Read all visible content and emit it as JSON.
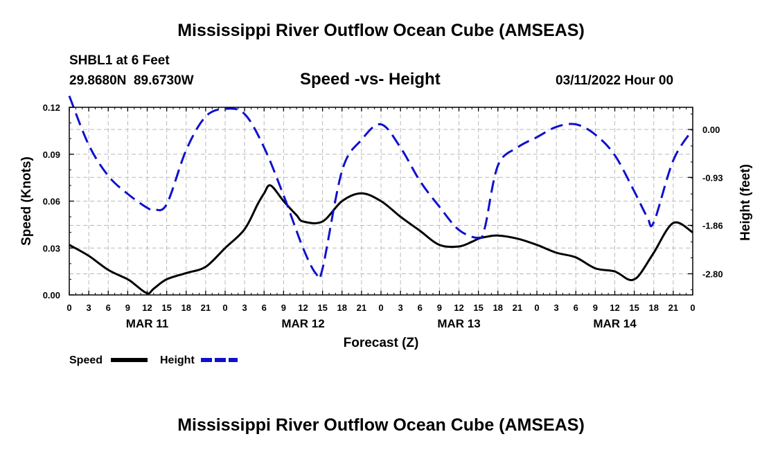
{
  "header": {
    "title": "Mississippi River Outflow Ocean Cube (AMSEAS)",
    "station": "SHBL1 at 6 Feet",
    "location": "29.8680N  89.6730W",
    "subtitle": "Speed -vs- Height",
    "datetime": "03/11/2022 Hour 00"
  },
  "footer": {
    "title": "Mississippi River Outflow Ocean Cube (AMSEAS)"
  },
  "chart_data": {
    "type": "line",
    "title": "Speed -vs- Height",
    "xlabel": "Forecast (Z)",
    "ylabel": "Speed (Knots)",
    "y2label": "Height (feet)",
    "x_range": [
      0,
      96
    ],
    "x_ticks": [
      0,
      3,
      6,
      9,
      12,
      15,
      18,
      21,
      24,
      27,
      30,
      33,
      36,
      39,
      42,
      45,
      48,
      51,
      54,
      57,
      60,
      63,
      66,
      69,
      72,
      75,
      78,
      81,
      84,
      87,
      90,
      93,
      96
    ],
    "x_tick_labels": [
      "0",
      "3",
      "6",
      "9",
      "12",
      "15",
      "18",
      "21",
      "0",
      "3",
      "6",
      "9",
      "12",
      "15",
      "18",
      "21",
      "0",
      "3",
      "6",
      "9",
      "12",
      "15",
      "18",
      "21",
      "0",
      "3",
      "6",
      "9",
      "12",
      "15",
      "18",
      "21",
      "0"
    ],
    "day_labels": [
      {
        "label": "MAR 11",
        "x": 12
      },
      {
        "label": "MAR 12",
        "x": 36
      },
      {
        "label": "MAR 13",
        "x": 60
      },
      {
        "label": "MAR 14",
        "x": 84
      }
    ],
    "ylim": [
      0,
      0.12
    ],
    "y_ticks": [
      0,
      0.03,
      0.06,
      0.09,
      0.12
    ],
    "y_tick_labels": [
      "0.00",
      "0.03",
      "0.06",
      "0.09",
      "0.12"
    ],
    "y2lim": [
      -3.21,
      0.43
    ],
    "y2_ticks": [
      0.0,
      -0.93,
      -1.86,
      -2.8
    ],
    "y2_tick_labels": [
      "0.00",
      "-0.93",
      "-1.86",
      "-2.80"
    ],
    "grid": true,
    "legend": "bottom-left",
    "series": [
      {
        "name": "Speed",
        "axis": "left",
        "color": "#000000",
        "dash": "solid",
        "x": [
          0,
          3,
          6,
          9,
          10,
          12,
          13,
          15,
          18,
          21,
          24,
          27,
          29,
          30,
          31,
          33,
          35,
          36,
          39,
          42,
          45,
          48,
          51,
          54,
          57,
          60,
          62,
          63,
          64,
          66,
          69,
          72,
          75,
          78,
          81,
          84,
          86,
          87,
          88,
          90,
          93,
          96
        ],
        "y": [
          0.032,
          0.025,
          0.016,
          0.01,
          0.007,
          0.001,
          0.004,
          0.01,
          0.014,
          0.018,
          0.03,
          0.042,
          0.058,
          0.065,
          0.07,
          0.06,
          0.051,
          0.047,
          0.047,
          0.06,
          0.065,
          0.06,
          0.05,
          0.041,
          0.032,
          0.031,
          0.034,
          0.036,
          0.037,
          0.038,
          0.036,
          0.032,
          0.027,
          0.024,
          0.017,
          0.015,
          0.01,
          0.01,
          0.014,
          0.027,
          0.046,
          0.04
        ]
      },
      {
        "name": "Height",
        "axis": "right",
        "color": "#1010cc",
        "dash": "dashed",
        "x": [
          0,
          3,
          6,
          9,
          12,
          13,
          15,
          18,
          21,
          24,
          27,
          30,
          33,
          36,
          38,
          39,
          42,
          45,
          48,
          51,
          54,
          57,
          60,
          63,
          64,
          66,
          69,
          72,
          75,
          78,
          81,
          84,
          87,
          89,
          90,
          93,
          96
        ],
        "y": [
          0.65,
          -0.3,
          -0.9,
          -1.25,
          -1.52,
          -1.55,
          -1.45,
          -0.4,
          0.25,
          0.4,
          0.3,
          -0.35,
          -1.28,
          -2.3,
          -2.8,
          -2.7,
          -0.8,
          -0.2,
          0.1,
          -0.35,
          -1.0,
          -1.5,
          -1.95,
          -2.1,
          -1.9,
          -0.7,
          -0.35,
          -0.15,
          0.05,
          0.1,
          -0.1,
          -0.5,
          -1.2,
          -1.7,
          -1.8,
          -0.6,
          0.0
        ]
      }
    ]
  }
}
